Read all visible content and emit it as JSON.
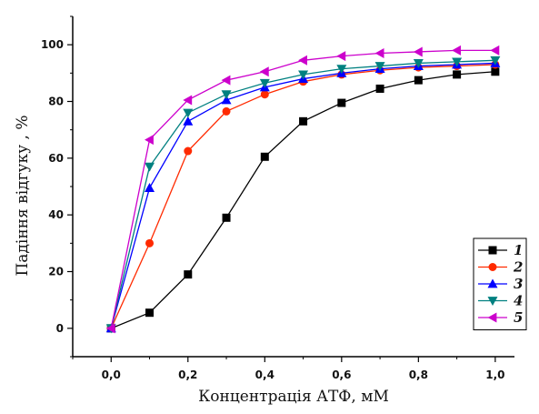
{
  "chart_data": {
    "type": "line",
    "xlabel": "Концентрація АТФ, мМ",
    "ylabel": "Падіння відгуку , %",
    "xlim": [
      -0.1,
      1.05
    ],
    "ylim": [
      -10,
      110
    ],
    "xticks": [
      "0,0",
      "0,2",
      "0,4",
      "0,6",
      "0,8",
      "1,0"
    ],
    "yticks": [
      "0",
      "20",
      "40",
      "60",
      "80",
      "100"
    ],
    "x": [
      0.0,
      0.1,
      0.2,
      0.3,
      0.4,
      0.5,
      0.6,
      0.7,
      0.8,
      0.9,
      1.0
    ],
    "legend_position": "bottom-right",
    "grid": false,
    "series": [
      {
        "name": "1",
        "color": "#000000",
        "marker": "square",
        "values": [
          0,
          5.5,
          19,
          39,
          60.5,
          73,
          79.5,
          84.5,
          87.5,
          89.5,
          90.5
        ]
      },
      {
        "name": "2",
        "color": "#ff2a00",
        "marker": "circle",
        "values": [
          0,
          30,
          62.5,
          76.5,
          82.5,
          87,
          89.5,
          91,
          92,
          92.5,
          93
        ]
      },
      {
        "name": "3",
        "color": "#0000ff",
        "marker": "triangle-up",
        "values": [
          0,
          49.5,
          73,
          80.5,
          85,
          88,
          90,
          91.5,
          92.5,
          93,
          93.5
        ]
      },
      {
        "name": "4",
        "color": "#008080",
        "marker": "triangle-down",
        "values": [
          0,
          57,
          76,
          82.5,
          86.5,
          89.5,
          91.5,
          92.5,
          93.5,
          94,
          94.5
        ]
      },
      {
        "name": "5",
        "color": "#cc00cc",
        "marker": "triangle-left",
        "values": [
          0,
          66.5,
          80.5,
          87.5,
          90.5,
          94.5,
          96,
          97,
          97.5,
          98,
          98
        ]
      }
    ]
  }
}
